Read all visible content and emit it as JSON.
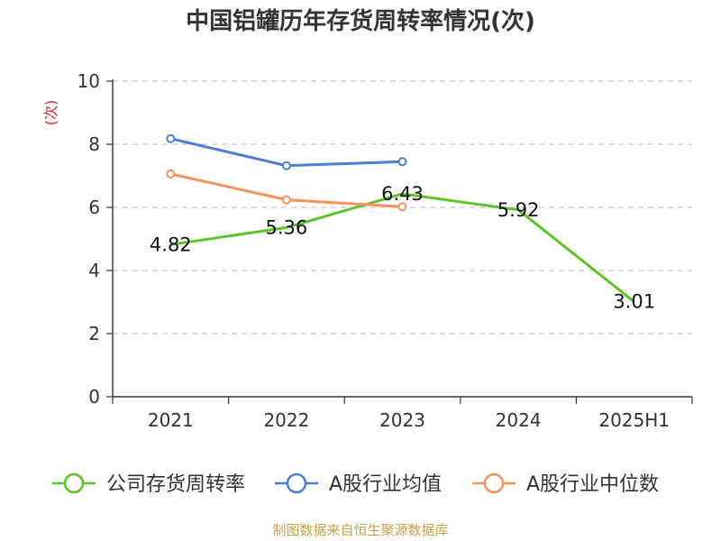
{
  "chart_data": {
    "type": "line",
    "title": "中国铝罐历年存货周转率情况(次)",
    "ylabel": "(次)",
    "xlabel": "",
    "categories": [
      "2021",
      "2022",
      "2023",
      "2024",
      "2025H1"
    ],
    "ylim": [
      0,
      10
    ],
    "yticks": [
      "0",
      "2",
      "4",
      "6",
      "8",
      "10"
    ],
    "grid": true,
    "legend_position": "bottom",
    "series": [
      {
        "name": "公司存货周转率",
        "color": "#5cc424",
        "values": [
          4.82,
          5.36,
          6.43,
          5.92,
          3.01
        ],
        "labels": [
          "4.82",
          "5.36",
          "6.43",
          "5.92",
          "3.01"
        ],
        "show_labels": true,
        "show_markers": false
      },
      {
        "name": "A股行业均值",
        "color": "#4b7fd6",
        "values": [
          8.18,
          7.32,
          7.45,
          null,
          null
        ],
        "show_labels": false,
        "show_markers": true
      },
      {
        "name": "A股行业中位数",
        "color": "#f5935c",
        "values": [
          7.06,
          6.24,
          6.02,
          null,
          null
        ],
        "show_labels": false,
        "show_markers": true
      }
    ],
    "source": "制图数据来自恒生聚源数据库",
    "source_color": "#c8a24a",
    "unit_color": "#d9262b",
    "axis_color": "#333333",
    "grid_color": "#c8c8c8"
  }
}
